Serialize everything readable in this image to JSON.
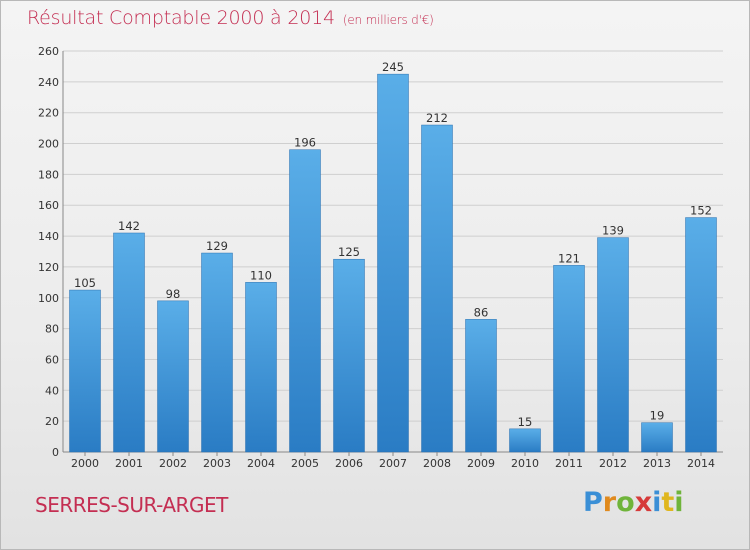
{
  "header": {
    "title": "Résultat Comptable 2000 à 2014",
    "subtitle": "(en milliers d'€)"
  },
  "footer": {
    "location": "SERRES-SUR-ARGET",
    "logo_text": "Proxiti",
    "logo_letters": [
      {
        "ch": "P",
        "color": "#3a8fd6"
      },
      {
        "ch": "r",
        "color": "#e08a1e"
      },
      {
        "ch": "o",
        "color": "#6fb43a"
      },
      {
        "ch": "x",
        "color": "#d63a3a"
      },
      {
        "ch": "i",
        "color": "#3a8fd6"
      },
      {
        "ch": "t",
        "color": "#e0b61e"
      },
      {
        "ch": "i",
        "color": "#6fb43a"
      }
    ]
  },
  "chart_data": {
    "type": "bar",
    "title": "Résultat Comptable 2000 à 2014",
    "subtitle": "(en milliers d'€)",
    "categories": [
      "2000",
      "2001",
      "2002",
      "2003",
      "2004",
      "2005",
      "2006",
      "2007",
      "2008",
      "2009",
      "2010",
      "2011",
      "2012",
      "2013",
      "2014"
    ],
    "values": [
      105,
      142,
      98,
      129,
      110,
      196,
      125,
      245,
      212,
      86,
      15,
      121,
      139,
      19,
      152
    ],
    "ylim": [
      0,
      260
    ],
    "yticks": [
      0,
      20,
      40,
      60,
      80,
      100,
      120,
      140,
      160,
      180,
      200,
      220,
      240,
      260
    ],
    "grid": true,
    "legend": "none",
    "bar_color_top": "#5aaee8",
    "bar_color_bottom": "#2a7cc4",
    "grid_color": "#cfcfcf"
  }
}
